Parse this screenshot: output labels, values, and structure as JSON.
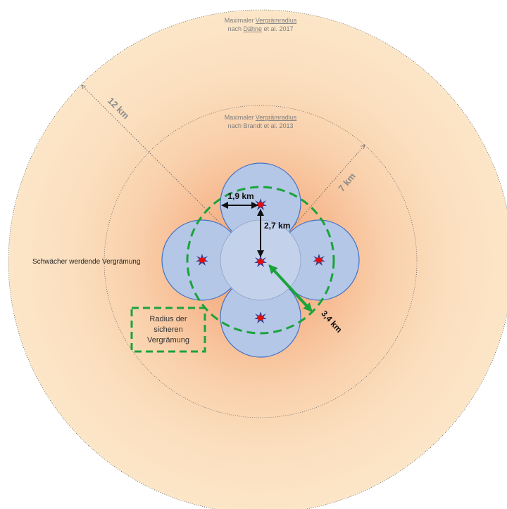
{
  "outer_radius_label": {
    "line1_prefix": "Maximaler ",
    "line1_term": "Vergrämradius",
    "line2_prefix": "nach ",
    "line2_term": "Dähne",
    "line2_suffix": " et al. 2017"
  },
  "inner_radius_label": {
    "line1_prefix": "Maximaler ",
    "line1_term": "Vergrämradius",
    "line2": "nach Brandt et al. 2013"
  },
  "distances": {
    "outer": "12 km",
    "inner": "7 km",
    "cluster_radius": "1,9 km",
    "center_offset": "2,7 km",
    "safe_radius": "3,4 km"
  },
  "zone_label": "Schwächer werdende Vergrämung",
  "safe_box": {
    "line1": "Radius der",
    "line2": "sicheren",
    "line3": "Vergrämung"
  },
  "colors": {
    "outer_zone": "#fce4c6",
    "gradient_center": "#f4a878",
    "cluster_fill": "#b4c7e7",
    "cluster_stroke": "#4472c4",
    "safe_dashed": "#1aa33b",
    "marker_red": "#e01010",
    "marker_blue": "#3c3c8c"
  },
  "icons": [
    "explosion-marker-icon"
  ]
}
